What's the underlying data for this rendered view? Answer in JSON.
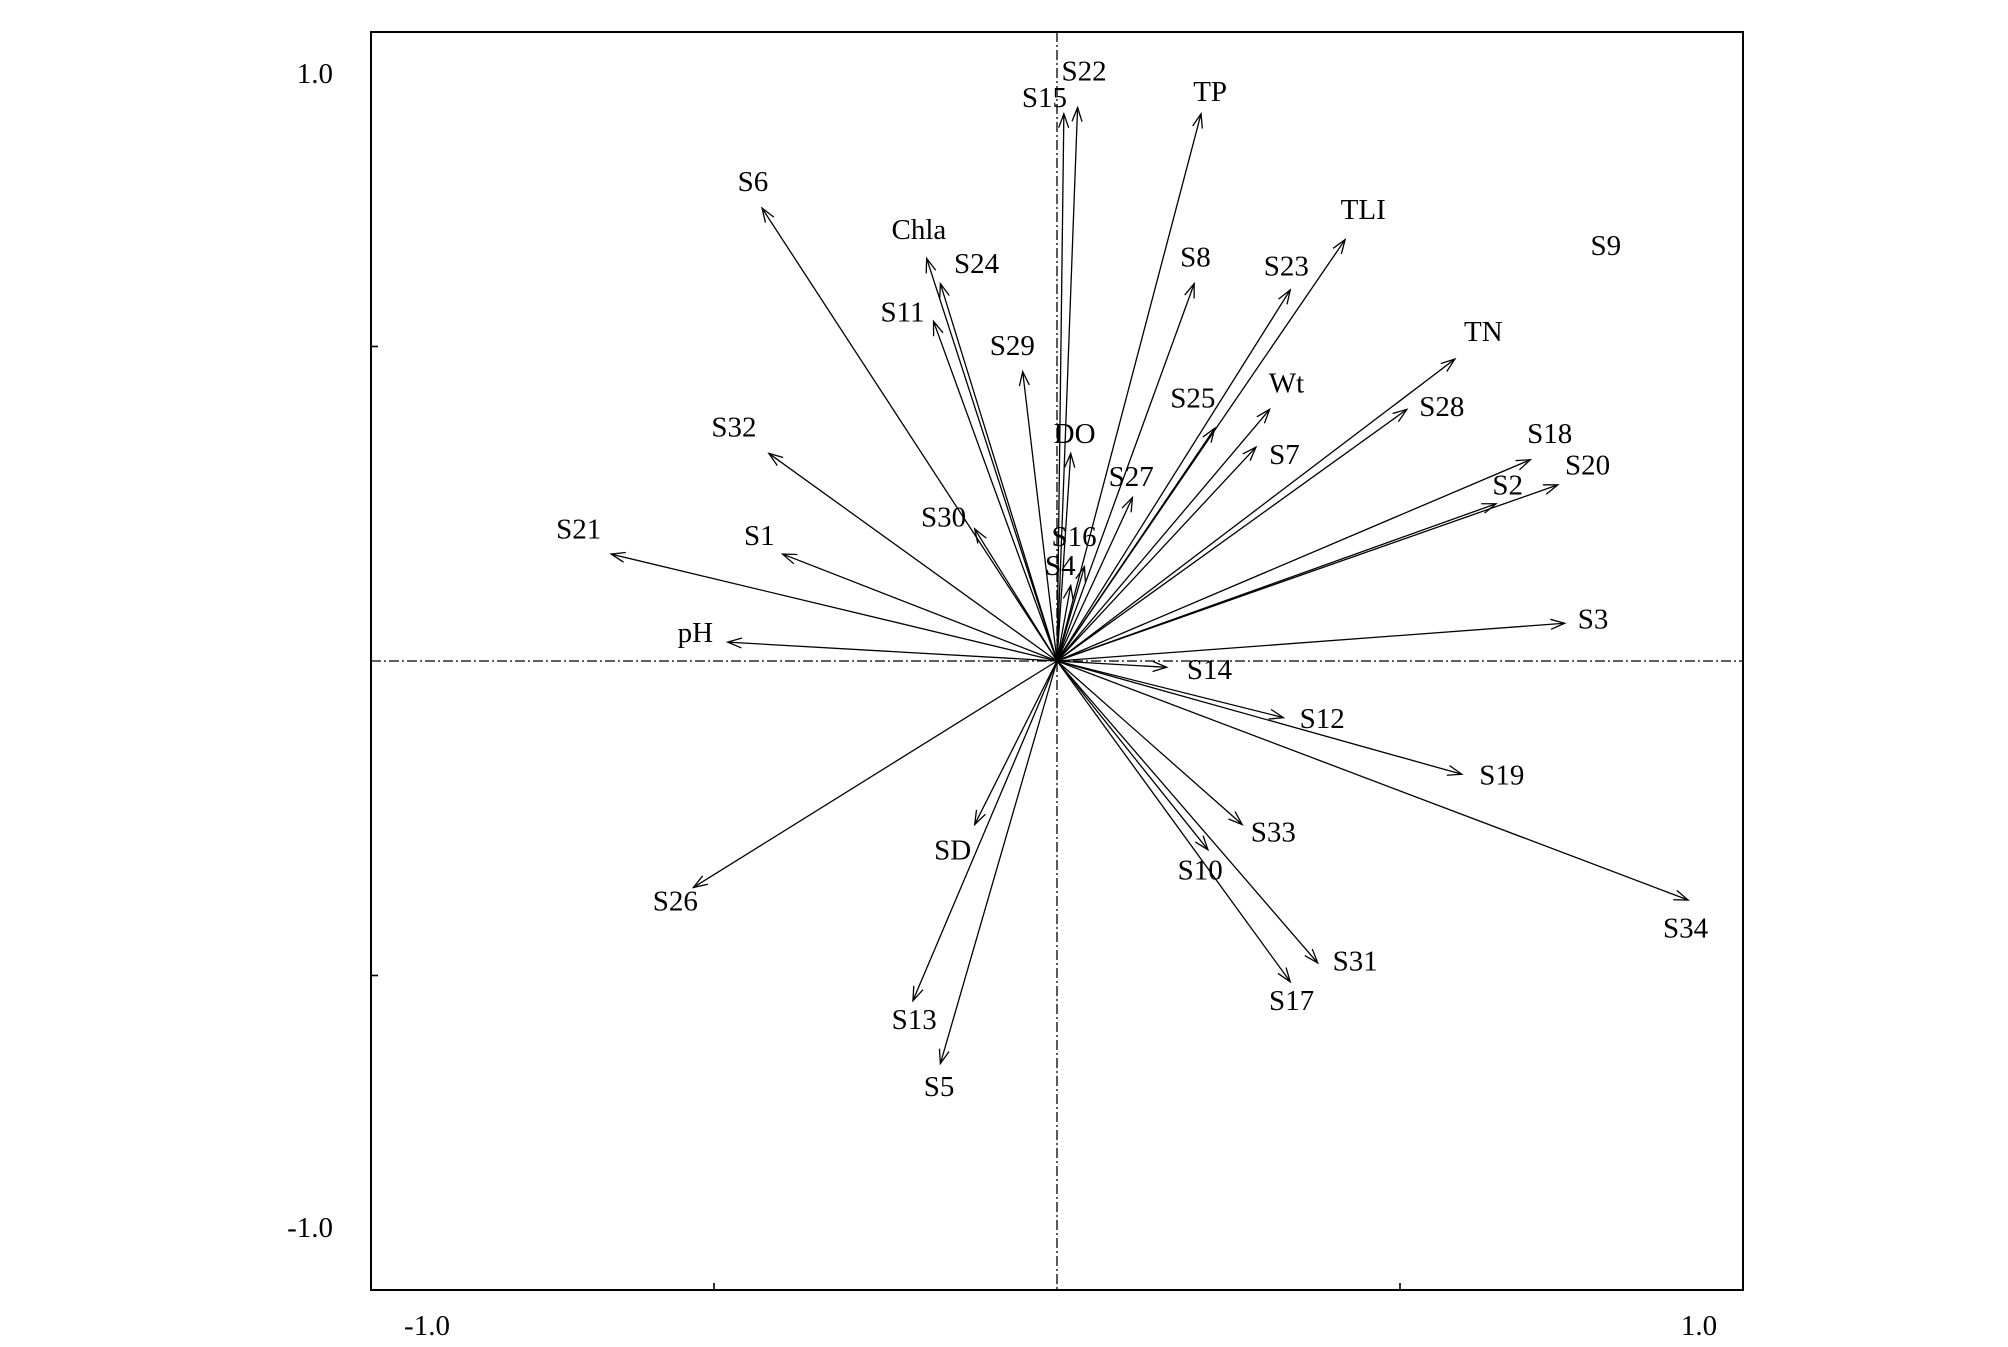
{
  "colors": {
    "ink": "#000000",
    "background": "#ffffff"
  },
  "chart_data": {
    "type": "scatter",
    "marker": "arrow",
    "xlim": [
      -1,
      1
    ],
    "ylim": [
      -1,
      1
    ],
    "x_tick_labels": [
      "-1.0",
      "1.0"
    ],
    "y_tick_labels": [
      "-1.0",
      "1.0"
    ],
    "unlabeled_ticks": [
      -0.5,
      0.5
    ],
    "grid": false,
    "zero_lines": true,
    "points": [
      {
        "label": "S1",
        "x": -0.4,
        "y": 0.17
      },
      {
        "label": "S2",
        "x": 0.64,
        "y": 0.25
      },
      {
        "label": "S3",
        "x": 0.74,
        "y": 0.06
      },
      {
        "label": "S4",
        "x": 0.02,
        "y": 0.12
      },
      {
        "label": "S5",
        "x": -0.17,
        "y": -0.64
      },
      {
        "label": "S6",
        "x": -0.43,
        "y": 0.72
      },
      {
        "label": "S7",
        "x": 0.29,
        "y": 0.34
      },
      {
        "label": "S8",
        "x": 0.2,
        "y": 0.6
      },
      {
        "label": "S9",
        "x": 0.8,
        "y": 0.66,
        "arrow": false
      },
      {
        "label": "S10",
        "x": 0.22,
        "y": -0.3
      },
      {
        "label": "S11",
        "x": -0.18,
        "y": 0.54
      },
      {
        "label": "S12",
        "x": 0.33,
        "y": -0.09
      },
      {
        "label": "S13",
        "x": -0.21,
        "y": -0.54
      },
      {
        "label": "S14",
        "x": 0.16,
        "y": -0.01
      },
      {
        "label": "S15",
        "x": 0.01,
        "y": 0.87
      },
      {
        "label": "S16",
        "x": 0.04,
        "y": 0.15
      },
      {
        "label": "S17",
        "x": 0.34,
        "y": -0.51
      },
      {
        "label": "S18",
        "x": 0.69,
        "y": 0.32
      },
      {
        "label": "S19",
        "x": 0.59,
        "y": -0.18
      },
      {
        "label": "S20",
        "x": 0.73,
        "y": 0.28
      },
      {
        "label": "S21",
        "x": -0.65,
        "y": 0.17
      },
      {
        "label": "S22",
        "x": 0.03,
        "y": 0.88
      },
      {
        "label": "S23",
        "x": 0.34,
        "y": 0.59
      },
      {
        "label": "S24",
        "x": -0.17,
        "y": 0.6
      },
      {
        "label": "S25",
        "x": 0.23,
        "y": 0.37
      },
      {
        "label": "S26",
        "x": -0.53,
        "y": -0.36
      },
      {
        "label": "S27",
        "x": 0.11,
        "y": 0.26
      },
      {
        "label": "S28",
        "x": 0.51,
        "y": 0.4
      },
      {
        "label": "S29",
        "x": -0.05,
        "y": 0.46
      },
      {
        "label": "S30",
        "x": -0.12,
        "y": 0.21
      },
      {
        "label": "S31",
        "x": 0.38,
        "y": -0.48
      },
      {
        "label": "S32",
        "x": -0.42,
        "y": 0.33
      },
      {
        "label": "S33",
        "x": 0.27,
        "y": -0.26
      },
      {
        "label": "S34",
        "x": 0.92,
        "y": -0.38
      },
      {
        "label": "TP",
        "x": 0.21,
        "y": 0.87
      },
      {
        "label": "TN",
        "x": 0.58,
        "y": 0.48
      },
      {
        "label": "TLI",
        "x": 0.42,
        "y": 0.67
      },
      {
        "label": "Chla",
        "x": -0.19,
        "y": 0.64
      },
      {
        "label": "Wt",
        "x": 0.31,
        "y": 0.4
      },
      {
        "label": "DO",
        "x": 0.02,
        "y": 0.33
      },
      {
        "label": "pH",
        "x": -0.48,
        "y": 0.03
      },
      {
        "label": "SD",
        "x": -0.12,
        "y": -0.26
      }
    ]
  }
}
